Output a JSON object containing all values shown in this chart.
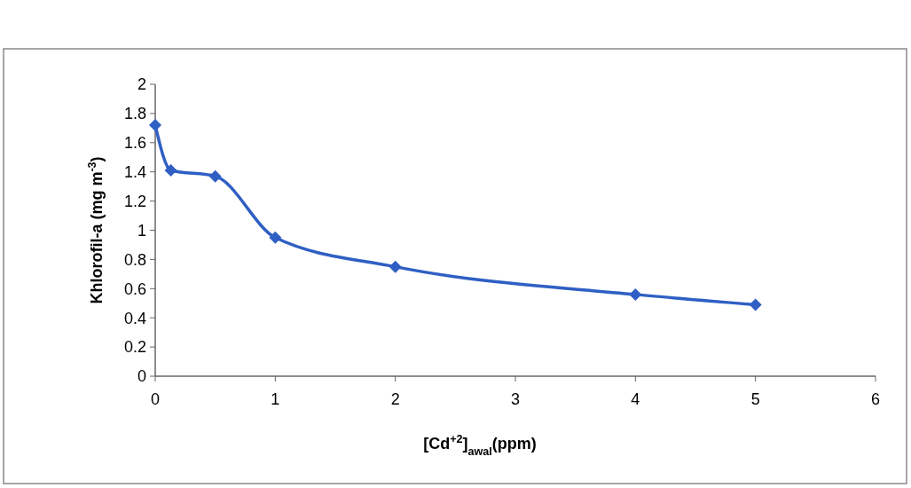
{
  "chart_data": {
    "type": "line",
    "xlabel": "[Cd$^{+2}$]$_{awal}$(ppm)",
    "ylabel": "Khlorofil-a (mg m$^{-3}$)",
    "x": [
      0,
      0.13,
      0.5,
      1,
      2,
      4,
      5
    ],
    "series": [
      {
        "color": "#2f5fc4",
        "values": [
          1.72,
          1.41,
          1.37,
          0.95,
          0.75,
          0.56,
          0.49
        ]
      }
    ],
    "xlim": [
      0,
      6
    ],
    "xticks": [
      0,
      1,
      2,
      3,
      4,
      5,
      6
    ],
    "ylim": [
      0,
      2
    ],
    "yticks": [
      0,
      0.2,
      0.4,
      0.6,
      0.8,
      1,
      1.2,
      1.4,
      1.6,
      1.8,
      2
    ],
    "marker": "diamond",
    "grid": false
  }
}
